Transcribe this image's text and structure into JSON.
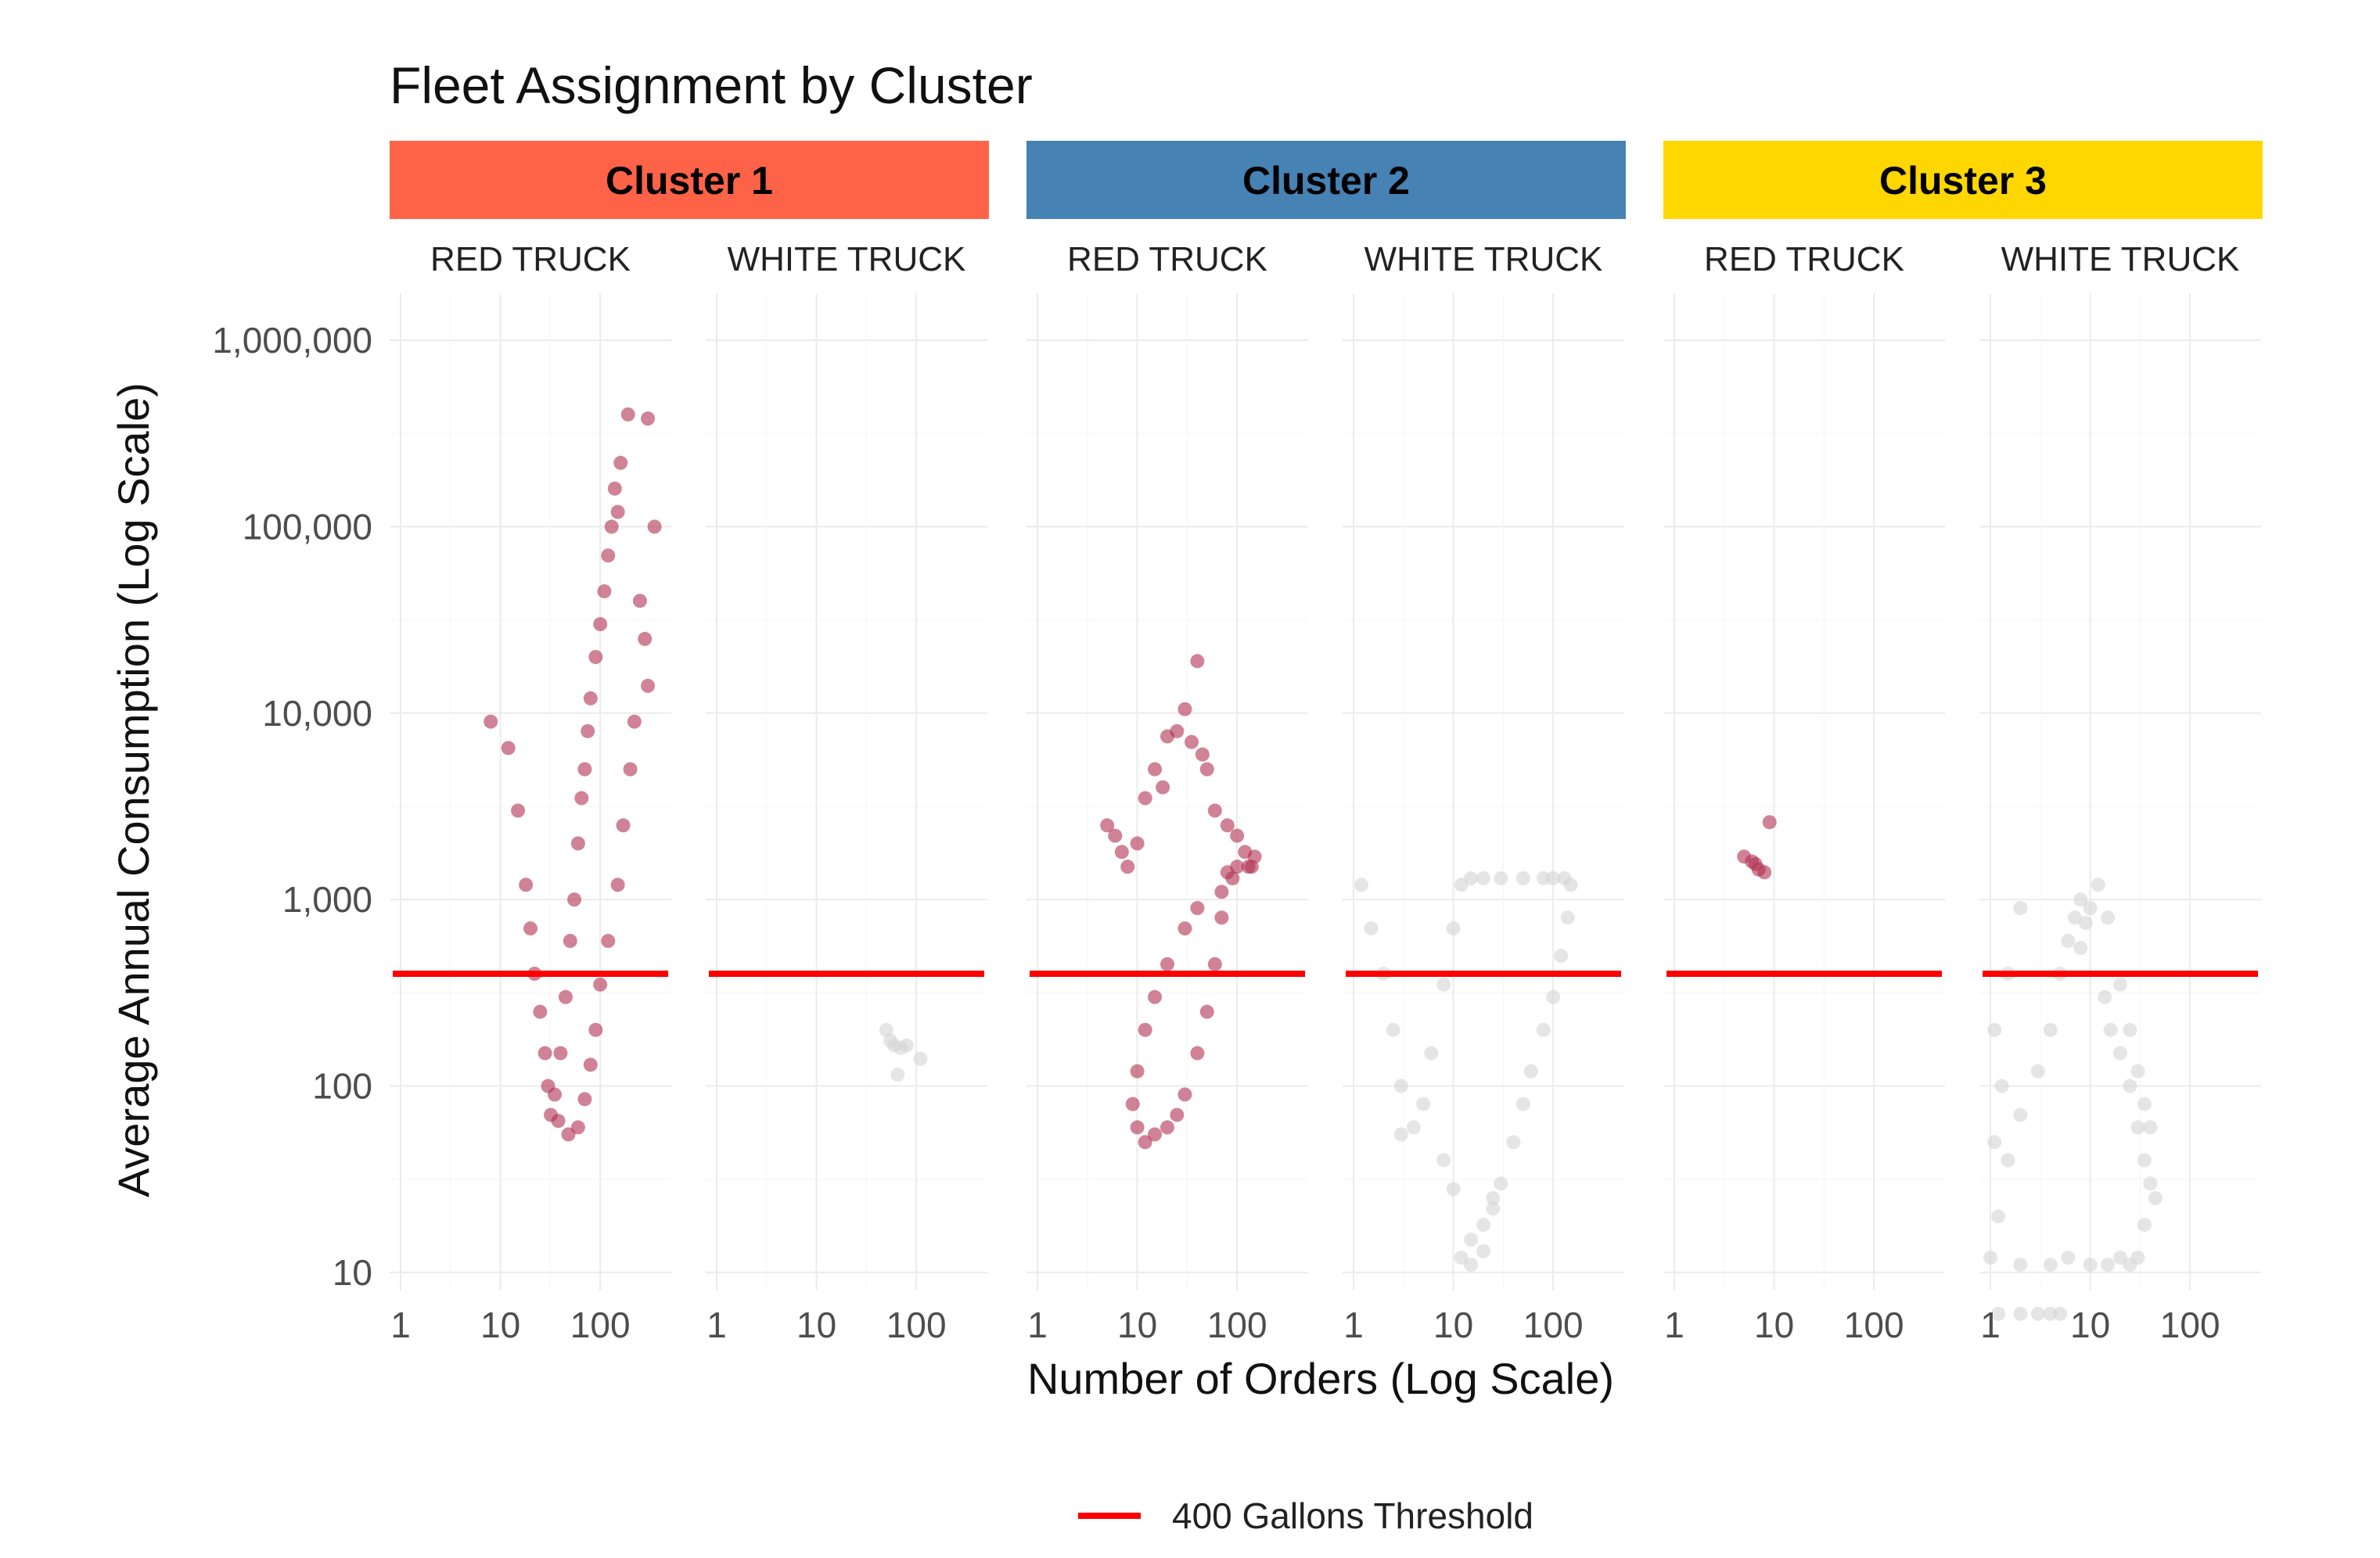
{
  "chart_data": {
    "type": "scatter",
    "title": "Fleet Assignment by Cluster",
    "xlabel": "Number of Orders (Log Scale)",
    "ylabel": "Average Annual Consumption (Log Scale)",
    "x_scale": "log10",
    "y_scale": "log10",
    "xlim": [
      1,
      400
    ],
    "ylim": [
      8,
      1000000
    ],
    "x_ticks": [
      1,
      10,
      100
    ],
    "x_tick_labels": [
      "1",
      "10",
      "100"
    ],
    "y_ticks": [
      10,
      100,
      1000,
      10000,
      100000,
      1000000
    ],
    "y_tick_labels": [
      "10",
      "100",
      "1,000",
      "10,000",
      "100,000",
      "1,000,000"
    ],
    "grid": true,
    "legend_position": "bottom",
    "threshold": {
      "label": "400 Gallons Threshold",
      "y": 400,
      "color": "#ff0000"
    },
    "colors": {
      "RED TRUCK": "#b03050",
      "WHITE TRUCK": "#d3d3d3"
    },
    "clusters": [
      {
        "name": "Cluster 1",
        "strip_color": "#ff6347",
        "panels": [
          {
            "truck": "RED TRUCK",
            "points": [
              [
                8,
                9000
              ],
              [
                12,
                6500
              ],
              [
                15,
                3000
              ],
              [
                18,
                1200
              ],
              [
                20,
                700
              ],
              [
                22,
                400
              ],
              [
                25,
                250
              ],
              [
                28,
                150
              ],
              [
                30,
                100
              ],
              [
                32,
                70
              ],
              [
                35,
                90
              ],
              [
                40,
                150
              ],
              [
                45,
                300
              ],
              [
                50,
                600
              ],
              [
                55,
                1000
              ],
              [
                60,
                2000
              ],
              [
                65,
                3500
              ],
              [
                70,
                5000
              ],
              [
                75,
                8000
              ],
              [
                80,
                12000
              ],
              [
                90,
                20000
              ],
              [
                100,
                30000
              ],
              [
                110,
                45000
              ],
              [
                120,
                70000
              ],
              [
                130,
                100000
              ],
              [
                140,
                160000
              ],
              [
                150,
                120000
              ],
              [
                160,
                220000
              ],
              [
                190,
                400000
              ],
              [
                300,
                380000
              ],
              [
                350,
                100000
              ],
              [
                250,
                40000
              ],
              [
                280,
                25000
              ],
              [
                300,
                14000
              ],
              [
                220,
                9000
              ],
              [
                200,
                5000
              ],
              [
                170,
                2500
              ],
              [
                150,
                1200
              ],
              [
                120,
                600
              ],
              [
                100,
                350
              ],
              [
                90,
                200
              ],
              [
                80,
                130
              ],
              [
                70,
                85
              ],
              [
                60,
                60
              ],
              [
                48,
                55
              ],
              [
                38,
                65
              ]
            ]
          },
          {
            "truck": "WHITE TRUCK",
            "points": [
              [
                50,
                200
              ],
              [
                60,
                165
              ],
              [
                70,
                160
              ],
              [
                80,
                165
              ],
              [
                65,
                115
              ],
              [
                110,
                140
              ],
              [
                55,
                175
              ]
            ]
          }
        ]
      },
      {
        "name": "Cluster 2",
        "strip_color": "#4682b4",
        "panels": [
          {
            "truck": "RED TRUCK",
            "points": [
              [
                5,
                2500
              ],
              [
                6,
                2200
              ],
              [
                7,
                1800
              ],
              [
                8,
                1500
              ],
              [
                10,
                2000
              ],
              [
                12,
                3500
              ],
              [
                15,
                5000
              ],
              [
                18,
                4000
              ],
              [
                20,
                7500
              ],
              [
                25,
                8000
              ],
              [
                30,
                10500
              ],
              [
                35,
                7000
              ],
              [
                40,
                19000
              ],
              [
                45,
                6000
              ],
              [
                50,
                5000
              ],
              [
                60,
                3000
              ],
              [
                80,
                2500
              ],
              [
                100,
                2200
              ],
              [
                120,
                1800
              ],
              [
                140,
                1500
              ],
              [
                90,
                1300
              ],
              [
                70,
                1100
              ],
              [
                40,
                900
              ],
              [
                30,
                700
              ],
              [
                20,
                450
              ],
              [
                15,
                300
              ],
              [
                12,
                200
              ],
              [
                10,
                120
              ],
              [
                9,
                80
              ],
              [
                10,
                60
              ],
              [
                12,
                50
              ],
              [
                15,
                55
              ],
              [
                20,
                60
              ],
              [
                25,
                70
              ],
              [
                30,
                90
              ],
              [
                40,
                150
              ],
              [
                50,
                250
              ],
              [
                60,
                450
              ],
              [
                70,
                800
              ],
              [
                80,
                1400
              ],
              [
                100,
                1500
              ],
              [
                130,
                1500
              ],
              [
                150,
                1700
              ]
            ]
          },
          {
            "truck": "WHITE TRUCK",
            "points": [
              [
                1.2,
                1200
              ],
              [
                1.5,
                700
              ],
              [
                2,
                400
              ],
              [
                2.5,
                200
              ],
              [
                3,
                100
              ],
              [
                3,
                55
              ],
              [
                4,
                60
              ],
              [
                5,
                80
              ],
              [
                6,
                150
              ],
              [
                8,
                350
              ],
              [
                10,
                700
              ],
              [
                12,
                1200
              ],
              [
                15,
                1300
              ],
              [
                20,
                1300
              ],
              [
                30,
                1300
              ],
              [
                50,
                1300
              ],
              [
                80,
                1300
              ],
              [
                100,
                1300
              ],
              [
                130,
                1300
              ],
              [
                150,
                1200
              ],
              [
                140,
                800
              ],
              [
                120,
                500
              ],
              [
                100,
                300
              ],
              [
                80,
                200
              ],
              [
                60,
                120
              ],
              [
                50,
                80
              ],
              [
                40,
                50
              ],
              [
                30,
                30
              ],
              [
                25,
                22
              ],
              [
                20,
                18
              ],
              [
                15,
                15
              ],
              [
                12,
                12
              ],
              [
                15,
                11
              ],
              [
                20,
                13
              ],
              [
                25,
                25
              ],
              [
                10,
                28
              ],
              [
                8,
                40
              ]
            ]
          }
        ]
      },
      {
        "name": "Cluster 3",
        "strip_color": "#ffd700",
        "panels": [
          {
            "truck": "RED TRUCK",
            "points": [
              [
                5,
                1700
              ],
              [
                6,
                1600
              ],
              [
                7,
                1450
              ],
              [
                8,
                1400
              ],
              [
                9,
                2600
              ],
              [
                6.5,
                1550
              ]
            ]
          },
          {
            "truck": "WHITE TRUCK",
            "points": [
              [
                1,
                12
              ],
              [
                1.2,
                20
              ],
              [
                1.5,
                40
              ],
              [
                2,
                70
              ],
              [
                3,
                120
              ],
              [
                4,
                200
              ],
              [
                5,
                400
              ],
              [
                6,
                600
              ],
              [
                7,
                800
              ],
              [
                8,
                1000
              ],
              [
                10,
                900
              ],
              [
                12,
                1200
              ],
              [
                9,
                750
              ],
              [
                8,
                550
              ],
              [
                15,
                800
              ],
              [
                14,
                300
              ],
              [
                16,
                200
              ],
              [
                20,
                150
              ],
              [
                25,
                100
              ],
              [
                30,
                60
              ],
              [
                35,
                40
              ],
              [
                40,
                30
              ],
              [
                45,
                25
              ],
              [
                35,
                18
              ],
              [
                30,
                12
              ],
              [
                25,
                11
              ],
              [
                20,
                12
              ],
              [
                15,
                11
              ],
              [
                10,
                11
              ],
              [
                6,
                12
              ],
              [
                4,
                11
              ],
              [
                2,
                11
              ],
              [
                1.2,
                6
              ],
              [
                2,
                6
              ],
              [
                3,
                6
              ],
              [
                4,
                6
              ],
              [
                5,
                6
              ],
              [
                40,
                60
              ],
              [
                35,
                80
              ],
              [
                30,
                120
              ],
              [
                25,
                200
              ],
              [
                20,
                350
              ],
              [
                2,
                900
              ],
              [
                1.5,
                400
              ],
              [
                1.1,
                200
              ],
              [
                1.3,
                100
              ],
              [
                1.1,
                50
              ]
            ]
          }
        ]
      }
    ]
  },
  "legend": {
    "items": [
      {
        "label": "400 Gallons Threshold",
        "color": "#ff0000"
      }
    ]
  }
}
